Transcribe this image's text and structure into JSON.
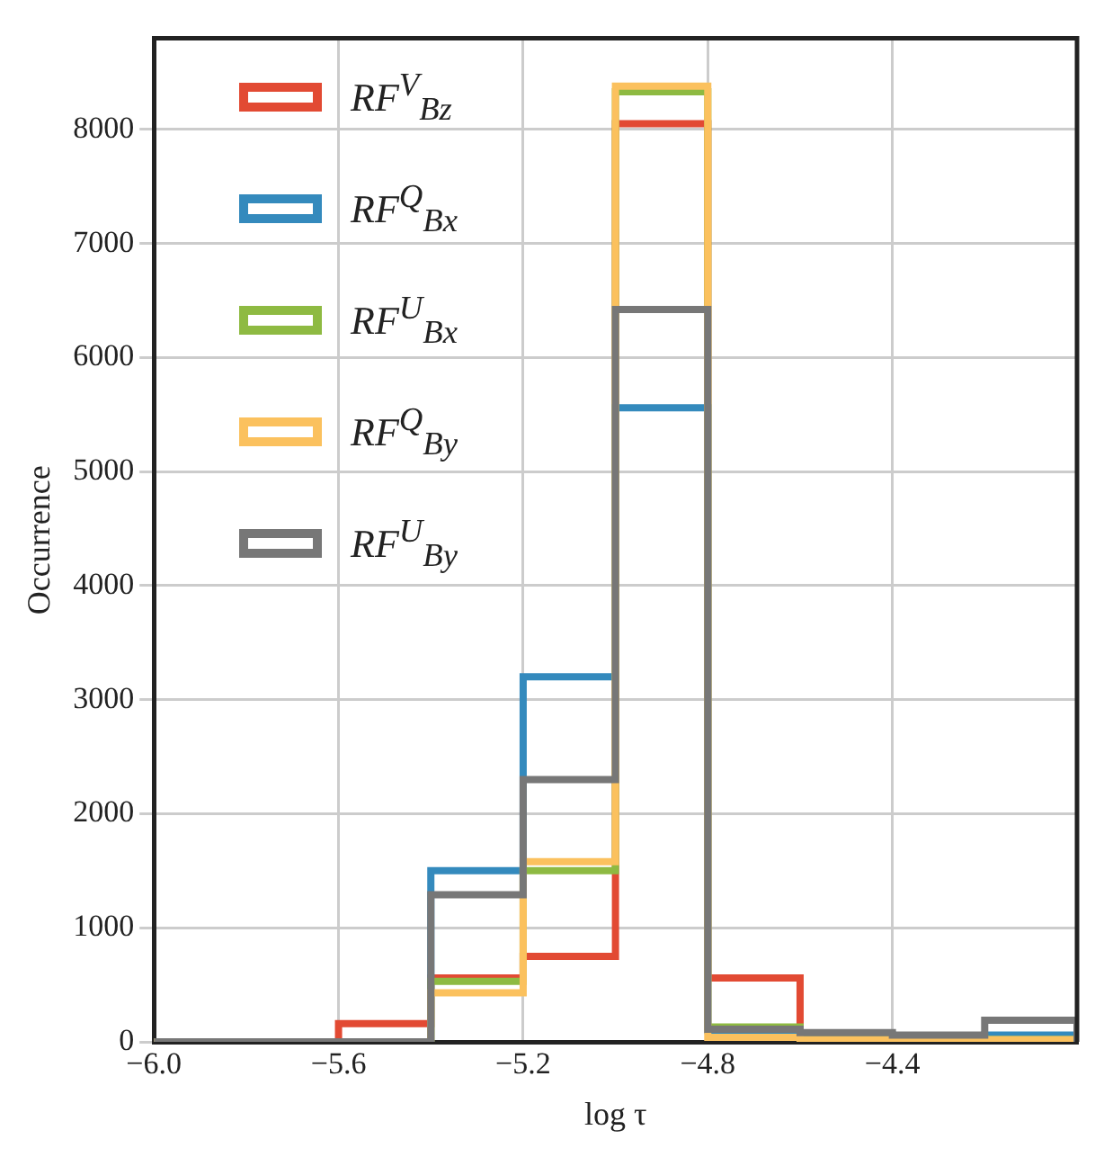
{
  "chart_data": {
    "type": "histogram",
    "xlabel": "log τ",
    "ylabel": "Occurrence",
    "bins": [
      -6.0,
      -5.8,
      -5.6,
      -5.4,
      -5.2,
      -5.0,
      -4.8,
      -4.6,
      -4.4,
      -4.2,
      -4.0
    ],
    "series": [
      {
        "name": "RF$^{V}$$_{Bz}$",
        "color": "#e24a33",
        "values": [
          0,
          0,
          160,
          560,
          750,
          8050,
          560,
          50,
          30,
          20
        ]
      },
      {
        "name": "RF$^{Q}$$_{Bx}$",
        "color": "#348abd",
        "values": [
          0,
          0,
          0,
          1500,
          3200,
          5560,
          100,
          60,
          40,
          60
        ]
      },
      {
        "name": "RF$^{U}$$_{Bx}$",
        "color": "#8eba42",
        "values": [
          0,
          0,
          0,
          530,
          1500,
          8330,
          130,
          50,
          30,
          20
        ]
      },
      {
        "name": "RF$^{Q}$$_{By}$",
        "color": "#fbc15e",
        "values": [
          0,
          0,
          0,
          430,
          1580,
          8380,
          40,
          20,
          20,
          20
        ]
      },
      {
        "name": "RF$^{U}$$_{By}$",
        "color": "#777777",
        "values": [
          0,
          0,
          0,
          1290,
          2300,
          6420,
          110,
          80,
          60,
          190
        ]
      }
    ],
    "xlim": [
      -6.0,
      -4.0
    ],
    "ylim": [
      0,
      8800
    ],
    "xticks": [
      {
        "value": -6.0,
        "label": "−6.0"
      },
      {
        "value": -5.6,
        "label": "−5.6"
      },
      {
        "value": -5.2,
        "label": "−5.2"
      },
      {
        "value": -4.8,
        "label": "−4.8"
      },
      {
        "value": -4.4,
        "label": "−4.4"
      }
    ],
    "yticks": [
      0,
      1000,
      2000,
      3000,
      4000,
      5000,
      6000,
      7000,
      8000
    ],
    "grid": true,
    "legend": "top left"
  }
}
